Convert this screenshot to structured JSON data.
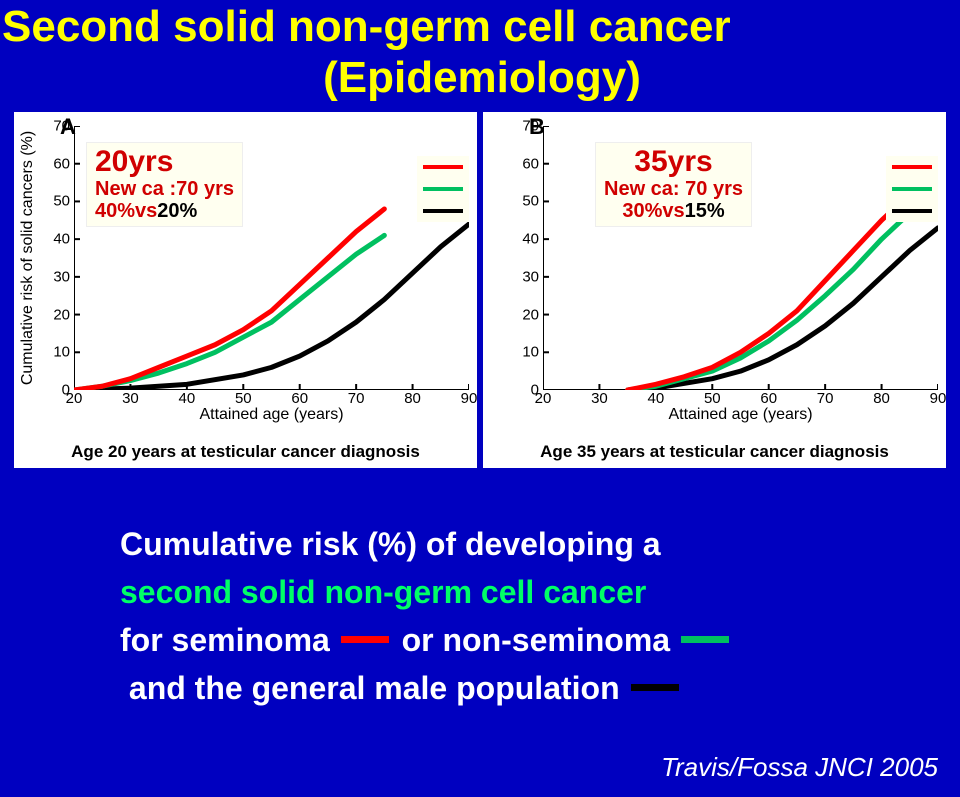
{
  "title_line1": "Second solid  non-germ cell cancer",
  "title_line2": "(Epidemiology)",
  "citation": "Travis/Fossa JNCI 2005",
  "body": {
    "prefix": "Cumulative risk (%) of developing a ",
    "green_phrase": "second solid non-germ cell cancer",
    "line2_a": "for seminoma",
    "line2_b": " or non-seminoma",
    "line3": "and the general male population"
  },
  "series_colors": {
    "seminoma": "#ff0000",
    "nonseminoma": "#00c060",
    "general": "#000000"
  },
  "line_width": 5,
  "chartA": {
    "panel_letter": "A",
    "box": {
      "l1": "20yrs",
      "l2": "New ca :70 yrs",
      "l3_a": "40%vs",
      "l3_b": "20%",
      "l1_color": "#d00000",
      "l2_color": "#d00000",
      "l3a_color": "#d00000",
      "l3b_color": "#000000"
    },
    "ylabel": "Cumulative risk of solid cancers (%)",
    "xlabel": "Attained age (years)",
    "caption": "Age 20 years at testicular cancer diagnosis",
    "xlim": [
      20,
      90
    ],
    "ylim": [
      0,
      70
    ],
    "xticks": [
      20,
      30,
      40,
      50,
      60,
      70,
      80,
      90
    ],
    "yticks": [
      0,
      10,
      20,
      30,
      40,
      50,
      60,
      70
    ],
    "series": {
      "seminoma": {
        "x": [
          20,
          25,
          30,
          35,
          40,
          45,
          50,
          55,
          60,
          65,
          70,
          75
        ],
        "y": [
          0,
          1,
          3,
          6,
          9,
          12,
          16,
          21,
          28,
          35,
          42,
          48
        ]
      },
      "nonseminoma": {
        "x": [
          20,
          25,
          30,
          35,
          40,
          45,
          50,
          55,
          60,
          65,
          70,
          75
        ],
        "y": [
          0,
          1,
          2.5,
          4.5,
          7,
          10,
          14,
          18,
          24,
          30,
          36,
          41
        ]
      },
      "general": {
        "x": [
          20,
          30,
          40,
          50,
          55,
          60,
          65,
          70,
          75,
          80,
          85,
          90
        ],
        "y": [
          0,
          0.5,
          1.5,
          4,
          6,
          9,
          13,
          18,
          24,
          31,
          38,
          44
        ]
      }
    }
  },
  "chartB": {
    "panel_letter": "B",
    "box": {
      "l1": "35yrs",
      "l2": "New ca: 70 yrs",
      "l3_a": "30%vs",
      "l3_b": "15%",
      "l1_color": "#d00000",
      "l2_color": "#d00000",
      "l3a_color": "#d00000",
      "l3b_color": "#000000"
    },
    "ylabel": "",
    "xlabel": "Attained age (years)",
    "caption": "Age 35 years at testicular cancer diagnosis",
    "xlim": [
      20,
      90
    ],
    "ylim": [
      0,
      70
    ],
    "xticks": [
      20,
      30,
      40,
      50,
      60,
      70,
      80,
      90
    ],
    "yticks": [
      0,
      10,
      20,
      30,
      40,
      50,
      60,
      70
    ],
    "series": {
      "seminoma": {
        "x": [
          35,
          40,
          45,
          50,
          55,
          60,
          65,
          70,
          75,
          80,
          85
        ],
        "y": [
          0,
          1.5,
          3.5,
          6,
          10,
          15,
          21,
          29,
          37,
          45,
          52
        ]
      },
      "nonseminoma": {
        "x": [
          35,
          40,
          45,
          50,
          55,
          60,
          65,
          70,
          75,
          80,
          85
        ],
        "y": [
          0,
          1,
          3,
          5,
          8.5,
          13,
          18.5,
          25,
          32,
          40,
          47
        ]
      },
      "general": {
        "x": [
          35,
          40,
          50,
          55,
          60,
          65,
          70,
          75,
          80,
          85,
          90
        ],
        "y": [
          0,
          0.5,
          3,
          5,
          8,
          12,
          17,
          23,
          30,
          37,
          43
        ]
      }
    }
  }
}
